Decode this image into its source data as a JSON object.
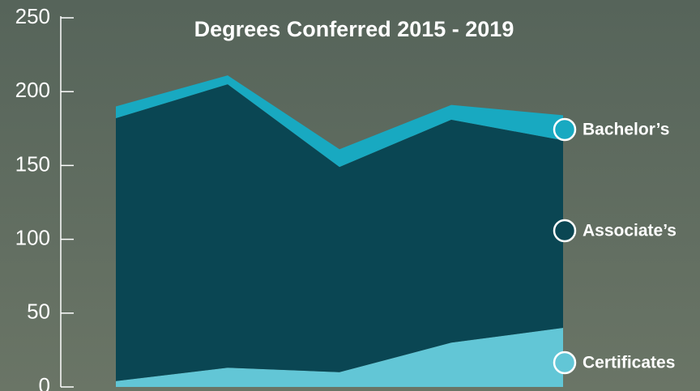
{
  "chart_data": {
    "type": "stacked-area",
    "title": "Degrees Conferred 2015 - 2019",
    "categories": [
      null,
      null,
      null,
      null,
      null
    ],
    "series": [
      {
        "name": "Certificates",
        "color": "#62c6d6",
        "values": [
          4,
          13,
          10,
          30,
          40
        ]
      },
      {
        "name": "Associate’s",
        "color": "#0a4653",
        "values": [
          178,
          192,
          139,
          151,
          127
        ]
      },
      {
        "name": "Bachelor’s",
        "color": "#18a9c1",
        "values": [
          8,
          6,
          12,
          10,
          17
        ]
      }
    ],
    "ylim": [
      0,
      250
    ],
    "yticks": [
      0,
      50,
      100,
      150,
      200,
      250
    ]
  }
}
